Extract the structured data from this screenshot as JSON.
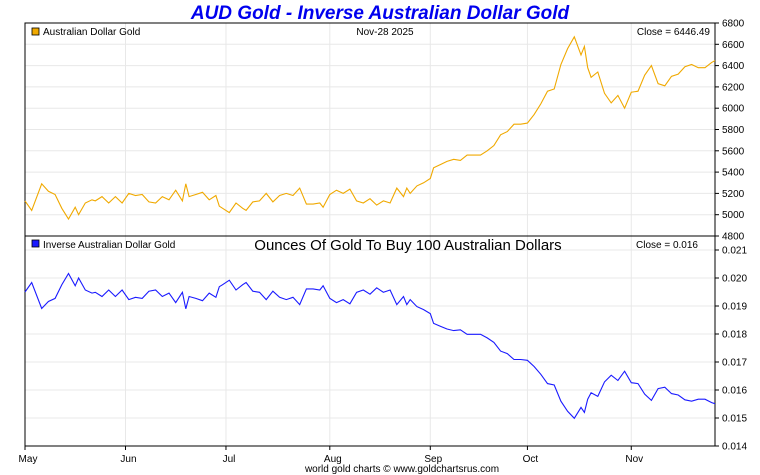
{
  "title": "AUD Gold - Inverse Australian Dollar Gold",
  "footer": "world gold charts © www.goldchartsrus.com",
  "colors": {
    "gold": "#f0a900",
    "blue": "#1a1aff",
    "grid": "#e8e8e8",
    "title": "#0000ee"
  },
  "chart_data": [
    {
      "type": "line",
      "legend": "Australian Dollar Gold",
      "date_label": "Nov-28  2025",
      "close_label": "Close = 6446.49",
      "ylim": [
        4800,
        6800
      ],
      "yticks": [
        "4800",
        "5000",
        "5200",
        "5400",
        "5600",
        "5800",
        "6000",
        "6200",
        "6400",
        "6600",
        "6800"
      ],
      "xlim": [
        0,
        206
      ],
      "xticks": [
        {
          "label": "May",
          "x": 0
        },
        {
          "label": "Jun",
          "x": 30
        },
        {
          "label": "Jul",
          "x": 60
        },
        {
          "label": "Aug",
          "x": 91
        },
        {
          "label": "Sep",
          "x": 121
        },
        {
          "label": "Oct",
          "x": 150
        },
        {
          "label": "Nov",
          "x": 181
        }
      ],
      "series": [
        {
          "name": "Australian Dollar Gold",
          "x": [
            0,
            2,
            5,
            7,
            9,
            11,
            13,
            15,
            16,
            18,
            20,
            21,
            23,
            25,
            27,
            29,
            31,
            33,
            35,
            37,
            39,
            41,
            43,
            45,
            47,
            48,
            49,
            51,
            53,
            55,
            57,
            58,
            59,
            61,
            63,
            65,
            66,
            68,
            70,
            72,
            74,
            76,
            78,
            80,
            82,
            84,
            86,
            88,
            89,
            91,
            93,
            95,
            97,
            99,
            101,
            103,
            105,
            107,
            109,
            111,
            113,
            114,
            115,
            117,
            119,
            121,
            122,
            124,
            126,
            128,
            130,
            132,
            134,
            136,
            138,
            140,
            142,
            144,
            146,
            148,
            150,
            152,
            154,
            156,
            158,
            160,
            162,
            164,
            166,
            167,
            168,
            169,
            171,
            173,
            175,
            177,
            179,
            181,
            183,
            185,
            187,
            189,
            191,
            193,
            195,
            197,
            199,
            201,
            203,
            205,
            206
          ],
          "values": [
            5130,
            5040,
            5290,
            5220,
            5190,
            5060,
            4960,
            5070,
            5000,
            5110,
            5140,
            5130,
            5170,
            5110,
            5170,
            5110,
            5200,
            5180,
            5190,
            5120,
            5110,
            5170,
            5140,
            5230,
            5130,
            5290,
            5170,
            5190,
            5210,
            5140,
            5180,
            5080,
            5060,
            5020,
            5110,
            5060,
            5040,
            5120,
            5130,
            5200,
            5120,
            5180,
            5200,
            5180,
            5250,
            5100,
            5100,
            5110,
            5070,
            5190,
            5230,
            5200,
            5240,
            5130,
            5110,
            5150,
            5090,
            5130,
            5110,
            5250,
            5170,
            5250,
            5200,
            5270,
            5300,
            5340,
            5440,
            5470,
            5500,
            5520,
            5510,
            5560,
            5560,
            5560,
            5600,
            5650,
            5750,
            5780,
            5850,
            5850,
            5860,
            5940,
            6040,
            6160,
            6180,
            6410,
            6560,
            6670,
            6500,
            6580,
            6380,
            6290,
            6340,
            6140,
            6050,
            6120,
            6000,
            6150,
            6160,
            6310,
            6400,
            6230,
            6210,
            6300,
            6320,
            6390,
            6410,
            6380,
            6380,
            6430,
            6446.49
          ]
        }
      ]
    },
    {
      "type": "line",
      "legend": "Inverse Australian Dollar Gold",
      "subtitle": "Ounces Of Gold To Buy 100 Australian Dollars",
      "close_label": "Close = 0.016",
      "ylim": [
        0.014,
        0.0215
      ],
      "yticks": [
        "0.014",
        "0.015",
        "0.016",
        "0.017",
        "0.018",
        "0.019",
        "0.020",
        "0.021"
      ],
      "xlim": [
        0,
        206
      ],
      "xticks": [
        {
          "label": "May",
          "x": 0
        },
        {
          "label": "Jun",
          "x": 30
        },
        {
          "label": "Jul",
          "x": 60
        },
        {
          "label": "Aug",
          "x": 91
        },
        {
          "label": "Sep",
          "x": 121
        },
        {
          "label": "Oct",
          "x": 150
        },
        {
          "label": "Nov",
          "x": 181
        }
      ],
      "series": [
        {
          "name": "Inverse Australian Dollar Gold",
          "x": [
            0,
            2,
            5,
            7,
            9,
            11,
            13,
            15,
            16,
            18,
            20,
            21,
            23,
            25,
            27,
            29,
            31,
            33,
            35,
            37,
            39,
            41,
            43,
            45,
            47,
            48,
            49,
            51,
            53,
            55,
            57,
            58,
            59,
            61,
            63,
            65,
            66,
            68,
            70,
            72,
            74,
            76,
            78,
            80,
            82,
            84,
            86,
            88,
            89,
            91,
            93,
            95,
            97,
            99,
            101,
            103,
            105,
            107,
            109,
            111,
            113,
            114,
            115,
            117,
            119,
            121,
            122,
            124,
            126,
            128,
            130,
            132,
            134,
            136,
            138,
            140,
            142,
            144,
            146,
            148,
            150,
            152,
            154,
            156,
            158,
            160,
            162,
            164,
            166,
            167,
            168,
            169,
            171,
            173,
            175,
            177,
            179,
            181,
            183,
            185,
            187,
            189,
            191,
            193,
            195,
            197,
            199,
            201,
            203,
            205,
            206
          ],
          "values": [
            0.0195,
            0.01984,
            0.01891,
            0.01916,
            0.01927,
            0.01976,
            0.02016,
            0.01972,
            0.02,
            0.01957,
            0.01946,
            0.01949,
            0.01934,
            0.01957,
            0.01934,
            0.01957,
            0.01923,
            0.01931,
            0.01927,
            0.01953,
            0.01957,
            0.01934,
            0.01946,
            0.01912,
            0.01949,
            0.0189,
            0.01934,
            0.01927,
            0.01919,
            0.01946,
            0.01931,
            0.01969,
            0.01976,
            0.01992,
            0.01957,
            0.01976,
            0.01984,
            0.01953,
            0.01949,
            0.01923,
            0.01953,
            0.01931,
            0.01923,
            0.01931,
            0.01905,
            0.01961,
            0.01961,
            0.01957,
            0.01972,
            0.01927,
            0.01912,
            0.01923,
            0.01908,
            0.01949,
            0.01957,
            0.01942,
            0.01965,
            0.01949,
            0.01957,
            0.01905,
            0.01934,
            0.01905,
            0.01923,
            0.01898,
            0.01887,
            0.01873,
            0.01838,
            0.01828,
            0.01818,
            0.01812,
            0.01815,
            0.01799,
            0.01799,
            0.01799,
            0.01786,
            0.0177,
            0.01739,
            0.0173,
            0.01709,
            0.01709,
            0.01706,
            0.01684,
            0.01656,
            0.01623,
            0.01618,
            0.0156,
            0.01524,
            0.01499,
            0.01538,
            0.0152,
            0.01567,
            0.0159,
            0.01577,
            0.01629,
            0.01653,
            0.01634,
            0.01667,
            0.01626,
            0.01623,
            0.01585,
            0.01563,
            0.01605,
            0.0161,
            0.01587,
            0.01582,
            0.01565,
            0.0156,
            0.01567,
            0.01567,
            0.01555,
            0.01551
          ]
        }
      ]
    }
  ]
}
